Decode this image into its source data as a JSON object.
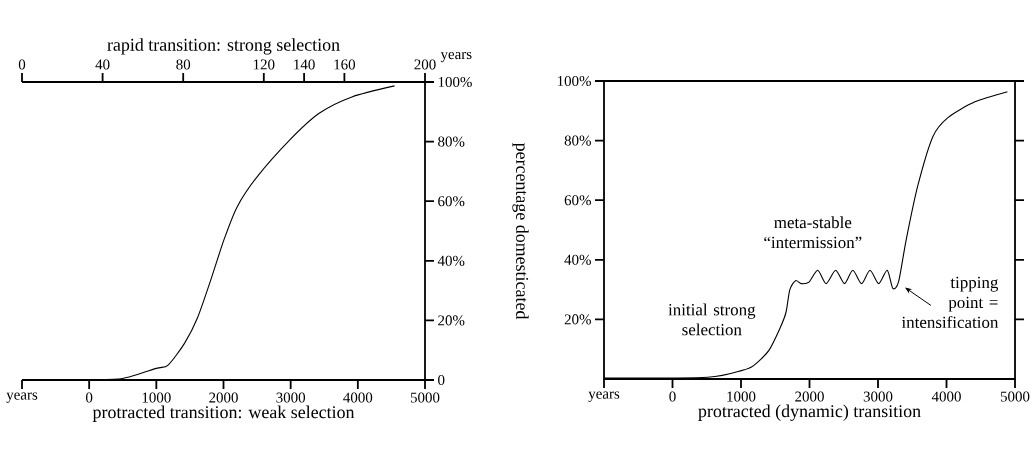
{
  "chart_data": [
    {
      "type": "line",
      "x2label": "rapid transition: strong selection",
      "xlabel": "protracted transition: weak selection",
      "ylabel": "percentage domesticated",
      "color": "#000000",
      "x": [
        -1000,
        0,
        500,
        1000,
        1175,
        1419,
        1615,
        1811,
        2006,
        2201,
        2494,
        2984,
        3424,
        3912,
        4547
      ],
      "values": [
        0,
        0.1,
        0.5,
        3.9,
        5,
        12.3,
        21,
        33.6,
        47,
        58,
        68,
        80.5,
        89.5,
        95,
        98.7
      ],
      "xlim": [
        -1000,
        5000
      ],
      "xticks": [
        {
          "value": -1000,
          "label": "years"
        },
        0,
        1000,
        2000,
        3000,
        4000,
        5000
      ],
      "x2lim": [
        0,
        200
      ],
      "x2ticks": [
        0,
        40,
        80,
        120,
        140,
        160,
        200
      ],
      "ylim": [
        0,
        100
      ],
      "yticks": [
        0,
        {
          "value": 20,
          "label": "20%"
        },
        {
          "value": 40,
          "label": "40%"
        },
        {
          "value": 60,
          "label": "60%"
        },
        {
          "value": 80,
          "label": "80%"
        },
        {
          "value": 100,
          "label": "100%"
        }
      ],
      "annotations": [
        "years"
      ]
    },
    {
      "type": "line",
      "xlabel": "protracted (dynamic) transition",
      "color": "#000000",
      "x": [
        -1000,
        515,
        1017,
        1184,
        1407,
        1574,
        1657,
        1713,
        1797,
        1880,
        1992,
        2120,
        2242,
        2382,
        2510,
        2632,
        2760,
        2883,
        3011,
        3134,
        3217,
        3301,
        3412,
        3579,
        3802,
        4025,
        4415,
        4889
      ],
      "values": [
        0.3,
        0.6,
        2.9,
        4.5,
        9.6,
        17.3,
        22.4,
        30,
        33,
        32,
        32.5,
        36.5,
        32,
        36.5,
        32,
        36.5,
        32,
        36.5,
        32,
        36.5,
        30.4,
        32.7,
        46.8,
        64.7,
        81.4,
        87.8,
        93,
        96.4
      ],
      "xlim": [
        -1000,
        5000
      ],
      "xticks": [
        {
          "value": -1000,
          "label": "years"
        },
        0,
        1000,
        2000,
        3000,
        4000,
        5000
      ],
      "ylim": [
        0,
        100
      ],
      "yticks": [
        {
          "value": 20,
          "label": "20%"
        },
        {
          "value": 40,
          "label": "40%"
        },
        {
          "value": 60,
          "label": "60%"
        },
        {
          "value": 80,
          "label": "80%"
        },
        {
          "value": 100,
          "label": "100%"
        }
      ],
      "annotations": [
        {
          "text": "initial strong selection",
          "x": 1574,
          "y": 17.3
        },
        {
          "text": "meta-stable “intermission”",
          "x": 2632,
          "y": 36.5
        },
        {
          "text": "tipping point = intensification",
          "x": 3217,
          "y": 30.4
        }
      ]
    }
  ]
}
